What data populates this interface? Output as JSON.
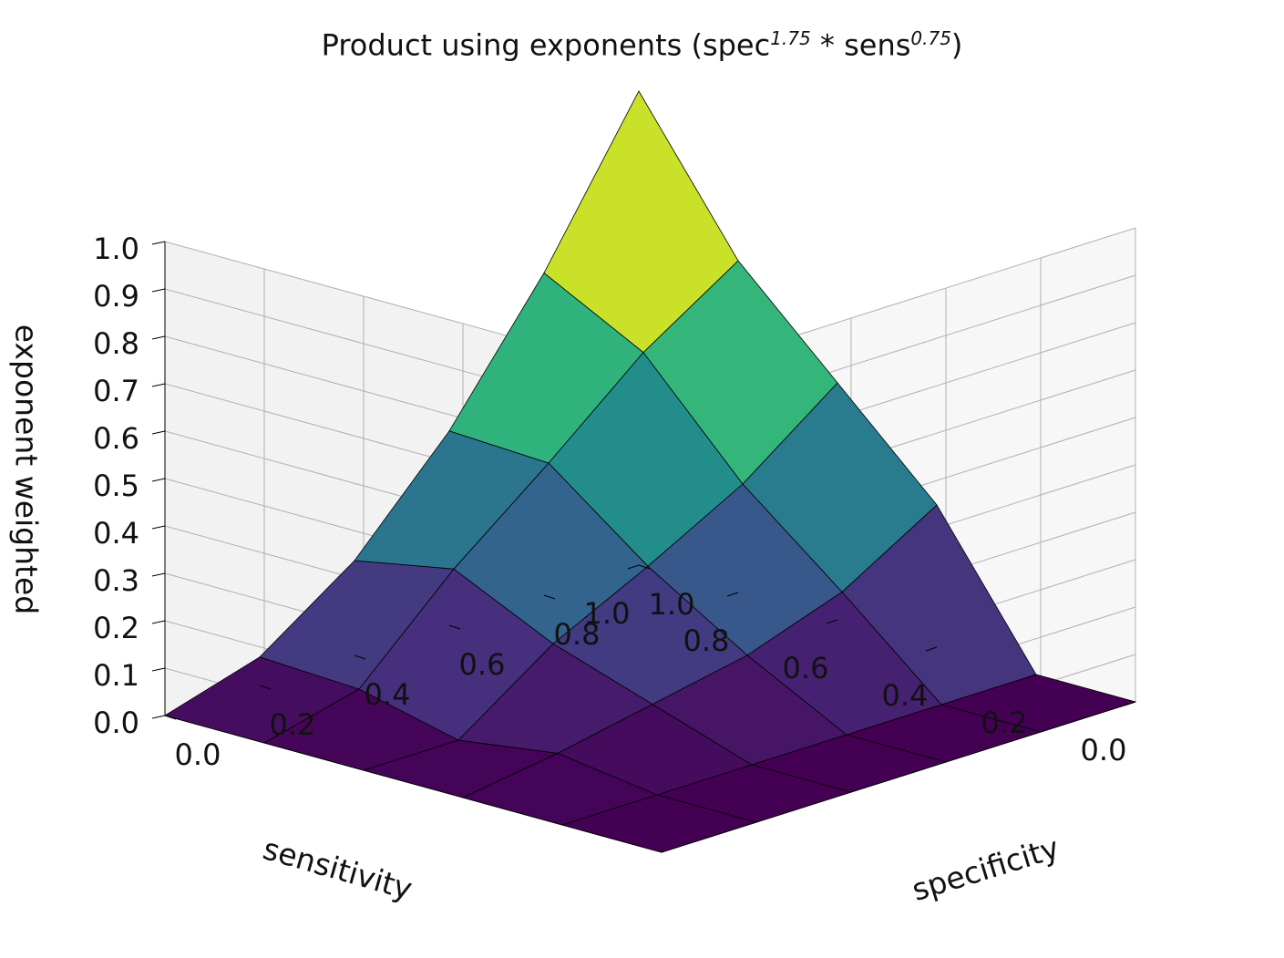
{
  "chart_data": {
    "type": "surface",
    "title": "Product using exponents (spec",
    "title_formula": {
      "spec_exponent": "1.75",
      "operator": "*",
      "sens_label": "sens",
      "sens_exponent": "0.75",
      "closing": ")"
    },
    "xlabel": "specificity",
    "ylabel": "sensitivity",
    "zlabel": "exponent weighted",
    "xlim": [
      0,
      1
    ],
    "ylim": [
      0,
      1
    ],
    "zlim": [
      0,
      1
    ],
    "x_ticks": [
      "0.0",
      "0.2",
      "0.4",
      "0.6",
      "0.8",
      "1.0"
    ],
    "y_ticks": [
      "0.0",
      "0.2",
      "0.4",
      "0.6",
      "0.8",
      "1.0"
    ],
    "z_ticks": [
      "0.0",
      "0.1",
      "0.2",
      "0.3",
      "0.4",
      "0.5",
      "0.6",
      "0.7",
      "0.8",
      "0.9",
      "1.0"
    ],
    "grid": true,
    "colormap": "viridis",
    "spec_exponent": 1.75,
    "sens_exponent": 0.75,
    "grid_x": [
      0.0,
      0.2,
      0.4,
      0.6,
      0.8,
      1.0
    ],
    "grid_y": [
      0.0,
      0.2,
      0.4,
      0.6,
      0.8,
      1.0
    ],
    "z_values": [
      [
        0.0,
        0.0,
        0.0,
        0.0,
        0.0,
        0.0
      ],
      [
        0.0,
        0.0,
        0.0,
        0.0,
        0.0,
        0.0
      ],
      [
        0.0,
        0.03,
        0.07,
        0.11,
        0.18,
        0.3
      ],
      [
        0.0,
        0.0,
        0.14,
        0.24,
        0.35,
        0.5
      ],
      [
        0.0,
        0.05,
        0.24,
        0.4,
        0.57,
        0.7
      ],
      [
        0.0,
        0.06,
        0.2,
        0.41,
        0.68,
        1.0
      ]
    ]
  },
  "colors": {
    "background": "#ffffff",
    "pane_back_left": "#f2f2f2",
    "pane_back_right": "#f7f7f7",
    "pane_floor": "#eaeaea",
    "grid": "#b0b0b0",
    "edge": "#000000",
    "text": "#111111"
  }
}
